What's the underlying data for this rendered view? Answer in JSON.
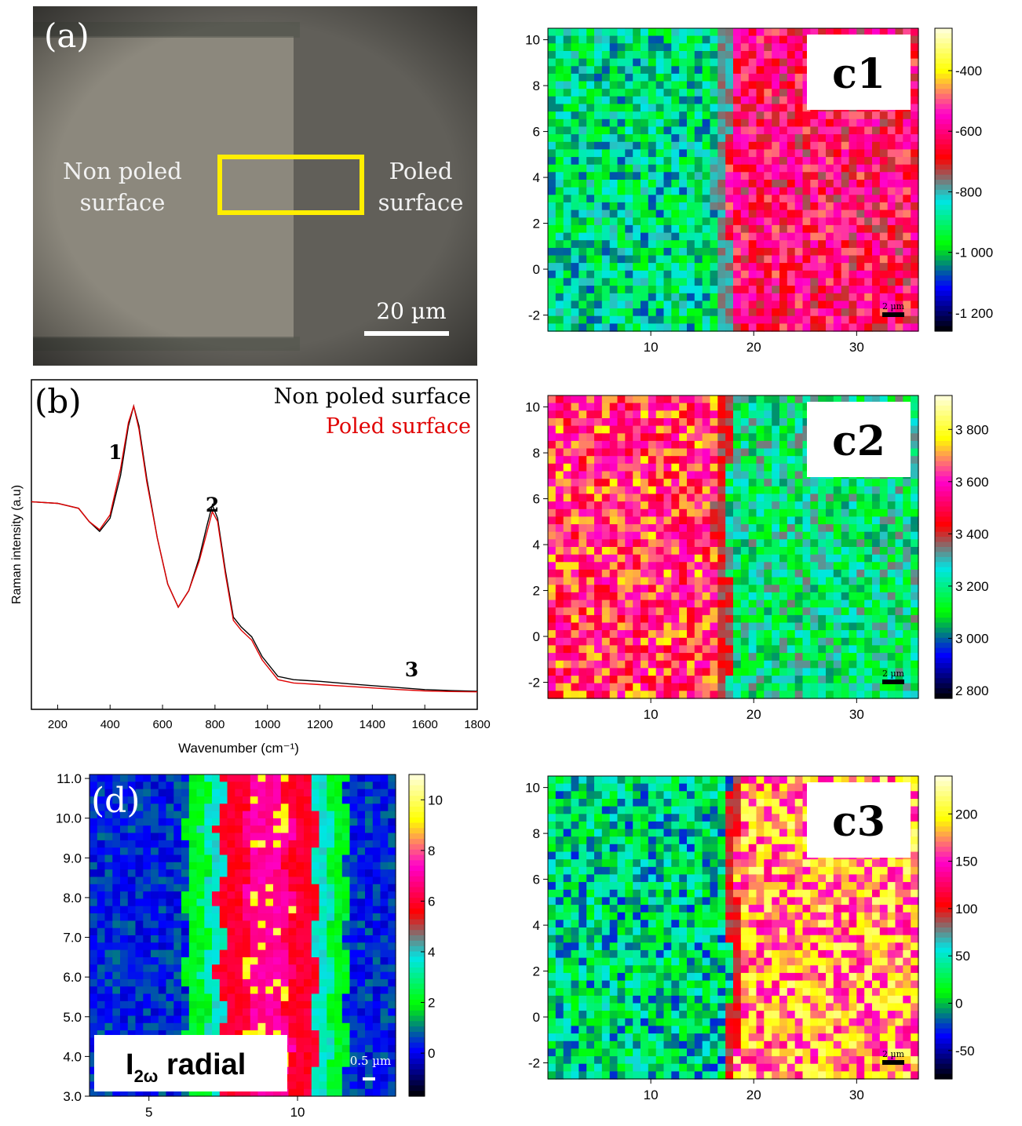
{
  "panel_a": {
    "label": "(a)",
    "left_label_line1": "Non poled",
    "left_label_line2": "surface",
    "right_label_line1": "Poled",
    "right_label_line2": "surface",
    "scalebar_label": "20 µm",
    "colors": {
      "nonpoled": "#8c887d",
      "poled": "#5f5e59",
      "roi": "#ffee00"
    }
  },
  "chart_data": [
    {
      "type": "line",
      "id": "b",
      "panel_label": "(b)",
      "xlabel": "Wavenumber (cm⁻¹)",
      "ylabel": "Raman intensity (a.u)",
      "xlim": [
        100,
        1800
      ],
      "ylim": [
        0,
        1
      ],
      "x_ticks": [
        200,
        400,
        600,
        800,
        1000,
        1200,
        1400,
        1600,
        1800
      ],
      "legend_position": "top-right",
      "peak_labels": [
        {
          "text": "1",
          "x": 420,
          "y": 0.76
        },
        {
          "text": "2",
          "x": 790,
          "y": 0.6
        },
        {
          "text": "3",
          "x": 1550,
          "y": 0.1
        }
      ],
      "series": [
        {
          "name": "Non poled surface",
          "color": "#000000",
          "x": [
            100,
            200,
            280,
            320,
            360,
            400,
            440,
            470,
            490,
            510,
            540,
            580,
            620,
            660,
            700,
            740,
            770,
            790,
            810,
            840,
            870,
            900,
            940,
            980,
            1040,
            1100,
            1200,
            1300,
            1400,
            1500,
            1600,
            1700,
            1800
          ],
          "y": [
            0.63,
            0.625,
            0.61,
            0.57,
            0.54,
            0.58,
            0.71,
            0.86,
            0.92,
            0.86,
            0.7,
            0.52,
            0.38,
            0.31,
            0.36,
            0.46,
            0.56,
            0.62,
            0.58,
            0.42,
            0.28,
            0.25,
            0.22,
            0.16,
            0.1,
            0.09,
            0.085,
            0.078,
            0.072,
            0.066,
            0.06,
            0.057,
            0.055
          ]
        },
        {
          "name": "Poled surface",
          "color": "#e00000",
          "x": [
            100,
            200,
            280,
            320,
            360,
            400,
            440,
            470,
            490,
            510,
            540,
            580,
            620,
            660,
            700,
            740,
            770,
            790,
            810,
            840,
            870,
            900,
            940,
            980,
            1040,
            1100,
            1200,
            1300,
            1400,
            1500,
            1600,
            1700,
            1800
          ],
          "y": [
            0.63,
            0.625,
            0.61,
            0.57,
            0.545,
            0.59,
            0.73,
            0.87,
            0.92,
            0.85,
            0.69,
            0.52,
            0.38,
            0.31,
            0.36,
            0.45,
            0.54,
            0.6,
            0.57,
            0.41,
            0.27,
            0.24,
            0.21,
            0.15,
            0.09,
            0.08,
            0.075,
            0.07,
            0.065,
            0.06,
            0.056,
            0.054,
            0.053
          ]
        }
      ]
    },
    {
      "type": "heatmap",
      "id": "c1",
      "label": "c1",
      "xlim": [
        0,
        36
      ],
      "ylim": [
        -2.7,
        10.5
      ],
      "x_ticks": [
        10,
        20,
        30
      ],
      "y_ticks": [
        -2,
        0,
        2,
        4,
        6,
        8,
        10
      ],
      "colorbar_ticks": [
        "-400",
        "-600",
        "-800",
        "-1 000",
        "-1 200"
      ],
      "colorbar_range": [
        -1260,
        -260
      ],
      "boundary_x": 17,
      "left_level": 0.32,
      "right_level": 0.65,
      "scalebar_label": "2 µm"
    },
    {
      "type": "heatmap",
      "id": "c2",
      "label": "c2",
      "xlim": [
        0,
        36
      ],
      "ylim": [
        -2.7,
        10.5
      ],
      "x_ticks": [
        10,
        20,
        30
      ],
      "y_ticks": [
        -2,
        0,
        2,
        4,
        6,
        8,
        10
      ],
      "colorbar_ticks": [
        "3 800",
        "3 600",
        "3 400",
        "3 200",
        "3 000",
        "2 800"
      ],
      "colorbar_range": [
        2770,
        3930
      ],
      "boundary_x": 17,
      "left_level": 0.72,
      "right_level": 0.36,
      "scalebar_label": "2 µm"
    },
    {
      "type": "heatmap",
      "id": "c3",
      "label": "c3",
      "xlim": [
        0,
        36
      ],
      "ylim": [
        -2.7,
        10.5
      ],
      "x_ticks": [
        10,
        20,
        30
      ],
      "y_ticks": [
        -2,
        0,
        2,
        4,
        6,
        8,
        10
      ],
      "colorbar_ticks": [
        "200",
        "150",
        "100",
        "50",
        "0",
        "-50"
      ],
      "colorbar_range": [
        -80,
        240
      ],
      "boundary_x": 18,
      "left_level": 0.3,
      "right_level": 0.8,
      "scalebar_label": "2 µm"
    },
    {
      "type": "heatmap",
      "id": "d",
      "panel_label": "(d)",
      "legend_text_main": "I",
      "legend_text_sub": "2ω",
      "legend_text_rest": " radial",
      "xlim": [
        3,
        13.3
      ],
      "ylim": [
        3,
        11.1
      ],
      "x_ticks": [
        5,
        10
      ],
      "y_ticks": [
        "3.0",
        "4.0",
        "5.0",
        "6.0",
        "7.0",
        "8.0",
        "9.0",
        "10.0",
        "11.0"
      ],
      "colorbar_ticks": [
        "10",
        "8",
        "6",
        "4",
        "2",
        "0"
      ],
      "colorbar_range": [
        -1.7,
        11
      ],
      "band_x": [
        7.4,
        10.6
      ],
      "scalebar_label": "0.5 µm"
    }
  ],
  "colormap": [
    "#000000",
    "#0000ff",
    "#00ff00",
    "#00e5e5",
    "#ff0000",
    "#ff00cc",
    "#ffff00",
    "#ffffe0"
  ]
}
